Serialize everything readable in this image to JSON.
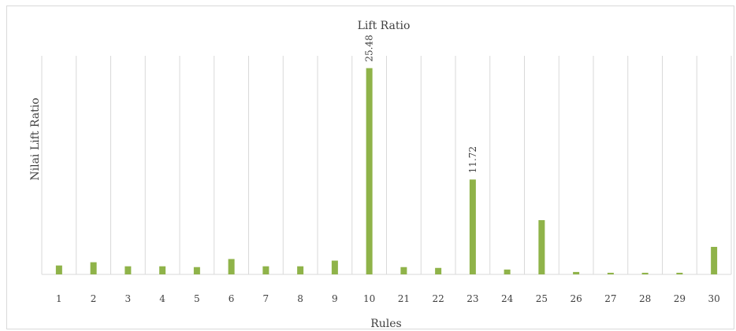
{
  "chart_data": {
    "type": "bar",
    "title": "Lift Ratio",
    "xlabel": "Rules",
    "ylabel": "Nilai Lift Ratio",
    "categories": [
      "1",
      "2",
      "3",
      "4",
      "5",
      "6",
      "7",
      "8",
      "9",
      "10",
      "21",
      "22",
      "23",
      "24",
      "25",
      "26",
      "27",
      "28",
      "29",
      "30"
    ],
    "values": [
      1.1,
      1.5,
      1.0,
      1.0,
      0.9,
      1.9,
      1.0,
      1.0,
      1.7,
      25.48,
      0.9,
      0.8,
      11.72,
      0.6,
      6.7,
      0.3,
      0.2,
      0.2,
      0.2,
      3.4
    ],
    "data_labels": {
      "9": "25.48",
      "12": "11.72"
    },
    "ylim": [
      0,
      27
    ],
    "grid": "vertical",
    "bar_color": "#8fb349",
    "grid_color": "#d9d9d9"
  }
}
